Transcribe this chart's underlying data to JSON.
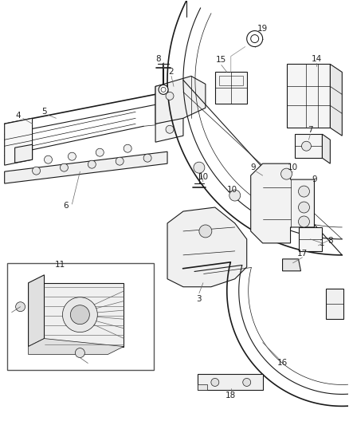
{
  "bg_color": "#ffffff",
  "line_color": "#1a1a1a",
  "label_color": "#222222",
  "fig_width": 4.38,
  "fig_height": 5.33,
  "dpi": 100
}
